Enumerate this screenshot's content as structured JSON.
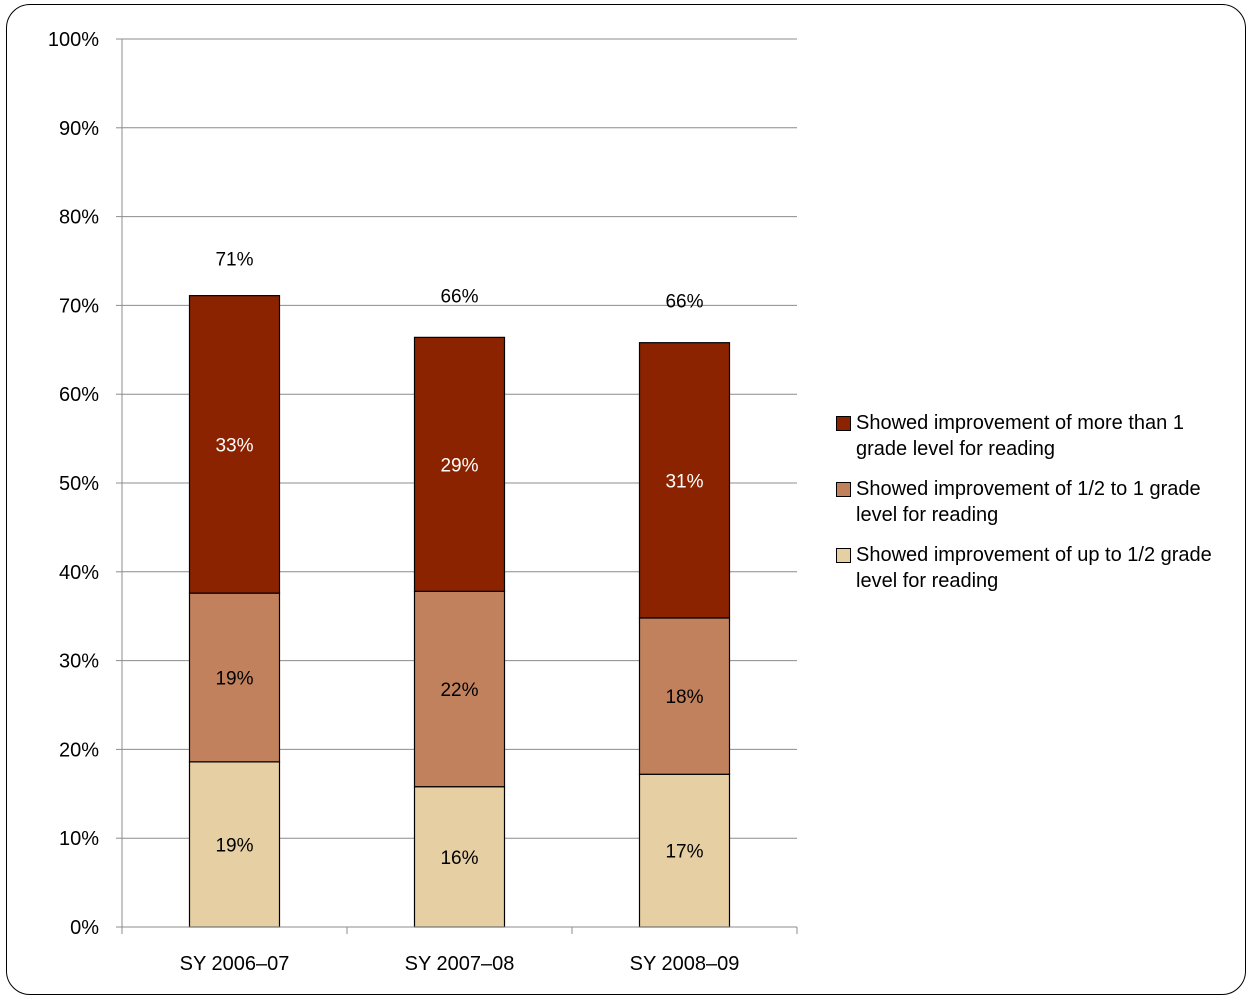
{
  "chart_data": {
    "type": "bar",
    "stacked": true,
    "title": "",
    "xlabel": "",
    "ylabel": "",
    "ylim": [
      0,
      100
    ],
    "yticks": [
      "0%",
      "10%",
      "20%",
      "30%",
      "40%",
      "50%",
      "60%",
      "70%",
      "80%",
      "90%",
      "100%"
    ],
    "categories": [
      "SY 2006–07",
      "SY 2007–08",
      "SY 2008–09"
    ],
    "series": [
      {
        "name": "Showed improvement of up to 1/2 grade level for reading",
        "values": [
          18.6,
          15.8,
          17.2
        ],
        "labels": [
          "19%",
          "16%",
          "17%"
        ],
        "color": "#E6CFA3",
        "label_color": "#000000"
      },
      {
        "name": "Showed improvement of 1/2 to 1 grade level for reading",
        "values": [
          19.0,
          22.0,
          17.6
        ],
        "labels": [
          "19%",
          "22%",
          "18%"
        ],
        "color": "#C1815D",
        "label_color": "#000000"
      },
      {
        "name": "Showed improvement of more than 1 grade level for reading",
        "values": [
          33.5,
          28.6,
          31.0
        ],
        "labels": [
          "33%",
          "29%",
          "31%"
        ],
        "color": "#8B2300",
        "label_color": "#FFFFFF"
      }
    ],
    "totals": [
      "71%",
      "66%",
      "66%"
    ],
    "grid": true,
    "legend_position": "right"
  }
}
